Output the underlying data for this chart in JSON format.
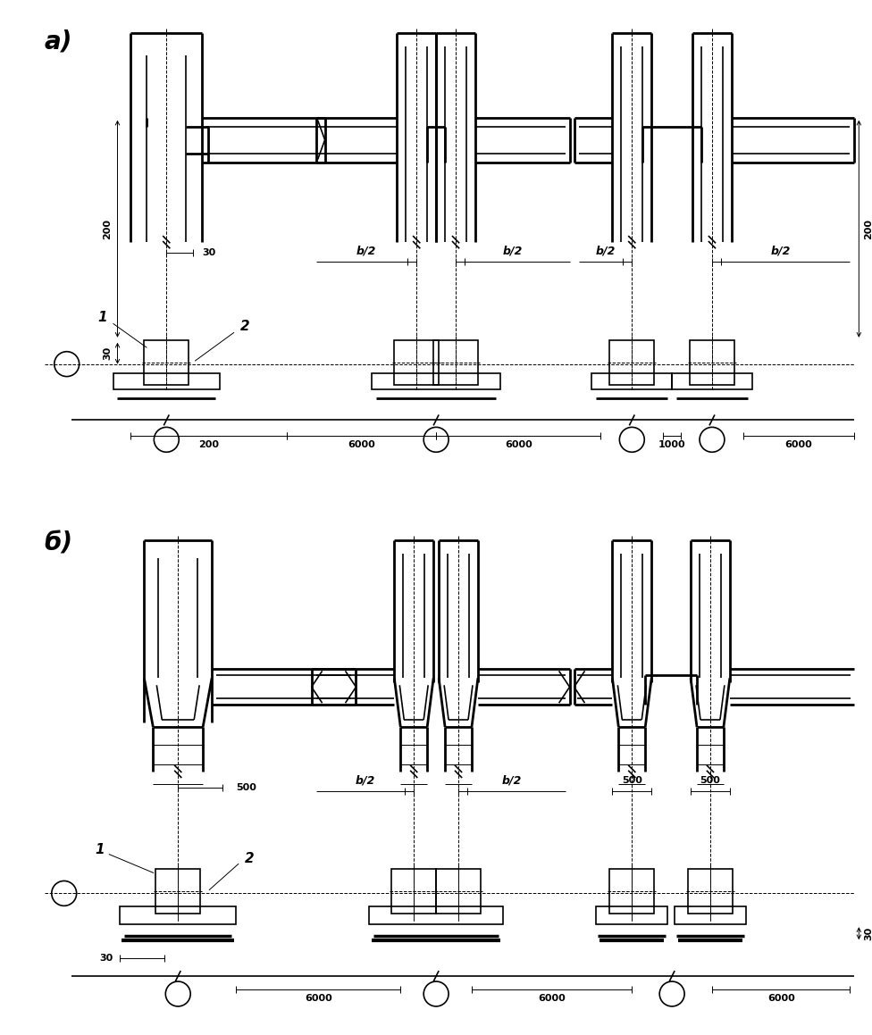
{
  "bg": "#ffffff",
  "lc": "#000000",
  "label_a": "а)",
  "label_b": "б)",
  "ann1": "1",
  "ann2": "2",
  "d30": "30",
  "d200": "200",
  "d6000": "6000",
  "d1000": "1000",
  "db2": "b/2",
  "d500": "500"
}
